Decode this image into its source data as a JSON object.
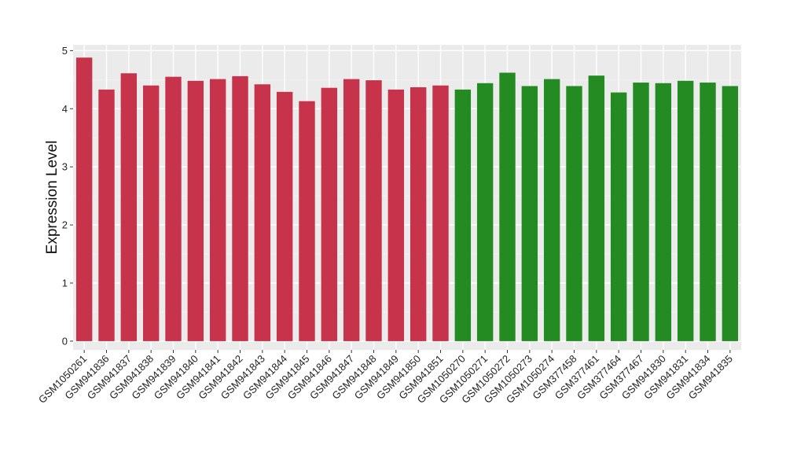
{
  "chart_data": {
    "type": "bar",
    "title": "",
    "xlabel": "",
    "ylabel": "Expression Level",
    "ylim": [
      -0.15,
      5.1
    ],
    "yticks": [
      0,
      1,
      2,
      3,
      4,
      5
    ],
    "grid": true,
    "legend": "none",
    "colors": {
      "panel_bg": "#ebebeb",
      "grid_major": "#ffffff",
      "grid_minor": "#f4f4f4",
      "tick": "#333333"
    },
    "categories": [
      "GSM1050261",
      "GSM941836",
      "GSM941837",
      "GSM941838",
      "GSM941839",
      "GSM941840",
      "GSM941841",
      "GSM941842",
      "GSM941843",
      "GSM941844",
      "GSM941845",
      "GSM941846",
      "GSM941847",
      "GSM941848",
      "GSM941849",
      "GSM941850",
      "GSM941851",
      "GSM1050270",
      "GSM1050271",
      "GSM1050272",
      "GSM1050273",
      "GSM1050274",
      "GSM377458",
      "GSM377461",
      "GSM377464",
      "GSM377467",
      "GSM941830",
      "GSM941831",
      "GSM941834",
      "GSM941835"
    ],
    "values": [
      4.88,
      4.33,
      4.61,
      4.4,
      4.55,
      4.48,
      4.51,
      4.56,
      4.42,
      4.29,
      4.13,
      4.36,
      4.51,
      4.49,
      4.33,
      4.37,
      4.4,
      4.33,
      4.44,
      4.62,
      4.39,
      4.51,
      4.39,
      4.57,
      4.28,
      4.45,
      4.44,
      4.48,
      4.45,
      4.39
    ],
    "bar_colors": [
      "#c6334a",
      "#c6334a",
      "#c6334a",
      "#c6334a",
      "#c6334a",
      "#c6334a",
      "#c6334a",
      "#c6334a",
      "#c6334a",
      "#c6334a",
      "#c6334a",
      "#c6334a",
      "#c6334a",
      "#c6334a",
      "#c6334a",
      "#c6334a",
      "#c6334a",
      "#238b22",
      "#238b22",
      "#238b22",
      "#238b22",
      "#238b22",
      "#238b22",
      "#238b22",
      "#238b22",
      "#238b22",
      "#238b22",
      "#238b22",
      "#238b22",
      "#238b22"
    ]
  }
}
